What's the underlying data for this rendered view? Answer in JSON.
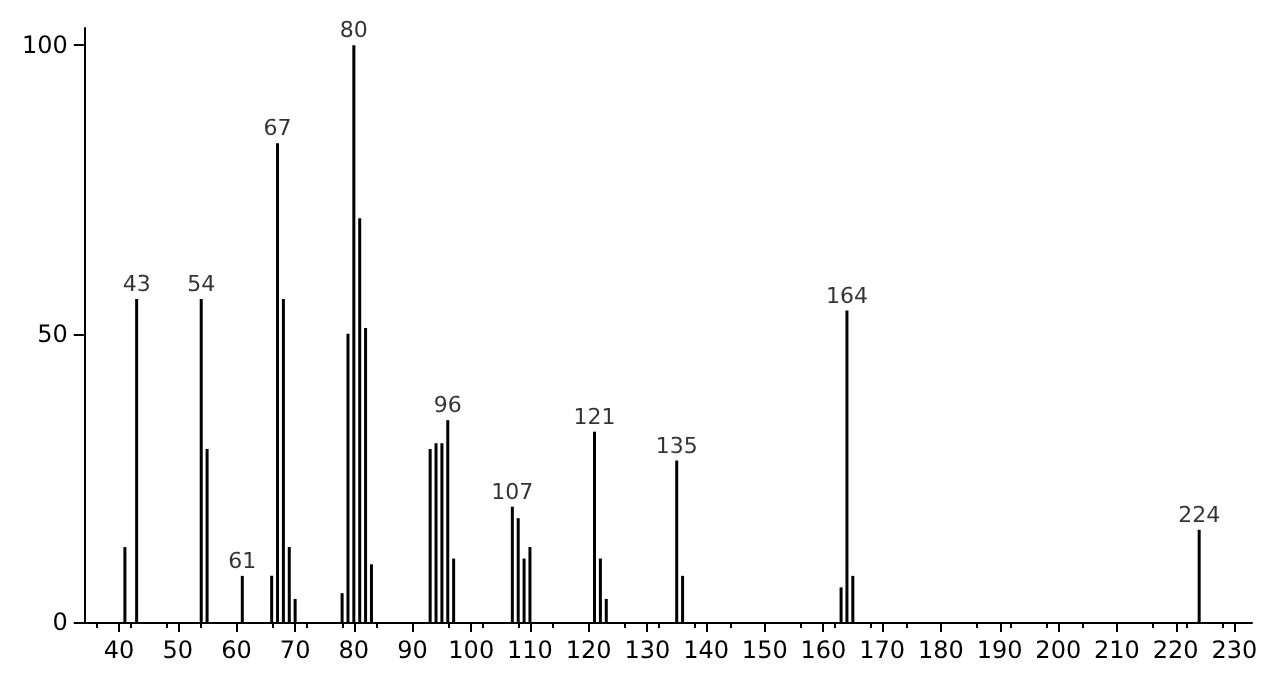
{
  "chart_data": {
    "type": "bar",
    "color": "#000000",
    "x": [
      41,
      43,
      54,
      55,
      61,
      66,
      67,
      68,
      69,
      70,
      78,
      79,
      80,
      81,
      82,
      83,
      93,
      94,
      95,
      96,
      97,
      107,
      108,
      109,
      110,
      121,
      122,
      123,
      135,
      136,
      163,
      164,
      165,
      224
    ],
    "values": [
      13,
      56,
      56,
      30,
      8,
      8,
      83,
      56,
      13,
      4,
      5,
      50,
      100,
      70,
      51,
      10,
      30,
      31,
      31,
      35,
      11,
      20,
      18,
      11,
      13,
      33,
      11,
      4,
      28,
      8,
      6,
      54,
      8,
      16
    ],
    "xlim": [
      34,
      233
    ],
    "xticks": [
      40,
      50,
      60,
      70,
      80,
      90,
      100,
      110,
      120,
      130,
      140,
      150,
      160,
      170,
      180,
      190,
      200,
      210,
      220,
      230
    ],
    "ylim": [
      0,
      103
    ],
    "yticks": [
      0,
      50,
      100
    ],
    "grid": false,
    "annotations": [
      {
        "text": "43",
        "x": 43,
        "y": 56
      },
      {
        "text": "54",
        "x": 54,
        "y": 56
      },
      {
        "text": "61",
        "x": 61,
        "y": 8
      },
      {
        "text": "67",
        "x": 67,
        "y": 83
      },
      {
        "text": "80",
        "x": 80,
        "y": 100
      },
      {
        "text": "96",
        "x": 96,
        "y": 35
      },
      {
        "text": "107",
        "x": 107,
        "y": 20
      },
      {
        "text": "121",
        "x": 121,
        "y": 33
      },
      {
        "text": "135",
        "x": 135,
        "y": 28
      },
      {
        "text": "164",
        "x": 164,
        "y": 54
      },
      {
        "text": "224",
        "x": 224,
        "y": 16
      }
    ]
  }
}
